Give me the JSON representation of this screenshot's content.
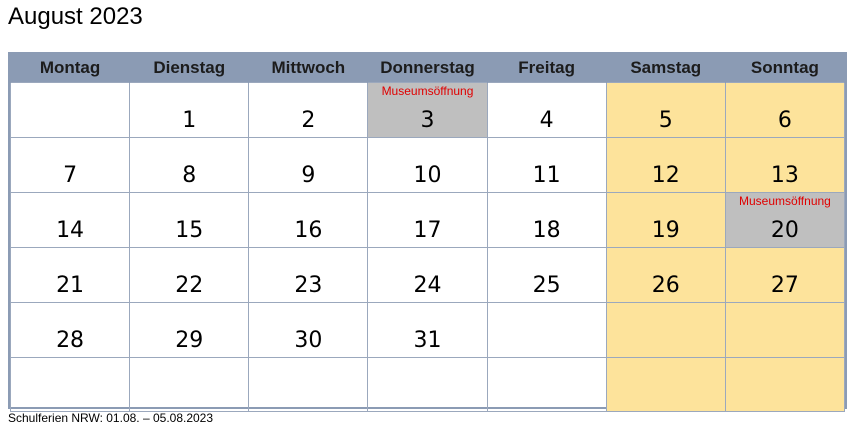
{
  "title": "August 2023",
  "weekdays": [
    "Montag",
    "Dienstag",
    "Mittwoch",
    "Donnerstag",
    "Freitag",
    "Samstag",
    "Sonntag"
  ],
  "weeks": [
    [
      {
        "day": "",
        "type": "normal"
      },
      {
        "day": "1",
        "type": "normal"
      },
      {
        "day": "2",
        "type": "normal"
      },
      {
        "day": "3",
        "type": "event",
        "event": "Museumsöffnung"
      },
      {
        "day": "4",
        "type": "normal"
      },
      {
        "day": "5",
        "type": "weekend"
      },
      {
        "day": "6",
        "type": "weekend"
      }
    ],
    [
      {
        "day": "7",
        "type": "normal"
      },
      {
        "day": "8",
        "type": "normal"
      },
      {
        "day": "9",
        "type": "normal"
      },
      {
        "day": "10",
        "type": "normal"
      },
      {
        "day": "11",
        "type": "normal"
      },
      {
        "day": "12",
        "type": "weekend"
      },
      {
        "day": "13",
        "type": "weekend"
      }
    ],
    [
      {
        "day": "14",
        "type": "normal"
      },
      {
        "day": "15",
        "type": "normal"
      },
      {
        "day": "16",
        "type": "normal"
      },
      {
        "day": "17",
        "type": "normal"
      },
      {
        "day": "18",
        "type": "normal"
      },
      {
        "day": "19",
        "type": "weekend"
      },
      {
        "day": "20",
        "type": "event",
        "event": "Museumsöffnung"
      }
    ],
    [
      {
        "day": "21",
        "type": "normal"
      },
      {
        "day": "22",
        "type": "normal"
      },
      {
        "day": "23",
        "type": "normal"
      },
      {
        "day": "24",
        "type": "normal"
      },
      {
        "day": "25",
        "type": "normal"
      },
      {
        "day": "26",
        "type": "weekend"
      },
      {
        "day": "27",
        "type": "weekend"
      }
    ],
    [
      {
        "day": "28",
        "type": "normal"
      },
      {
        "day": "29",
        "type": "normal"
      },
      {
        "day": "30",
        "type": "normal"
      },
      {
        "day": "31",
        "type": "normal"
      },
      {
        "day": "",
        "type": "normal"
      },
      {
        "day": "",
        "type": "weekend"
      },
      {
        "day": "",
        "type": "weekend"
      }
    ],
    [
      {
        "day": "",
        "type": "normal"
      },
      {
        "day": "",
        "type": "normal"
      },
      {
        "day": "",
        "type": "normal"
      },
      {
        "day": "",
        "type": "normal"
      },
      {
        "day": "",
        "type": "normal"
      },
      {
        "day": "",
        "type": "weekend"
      },
      {
        "day": "",
        "type": "weekend"
      }
    ]
  ],
  "footnote": "Schulferien NRW: 01.08. – 05.08.2023",
  "colors": {
    "header_bg": "#8b9bb4",
    "weekend_bg": "#fde39b",
    "event_bg": "#bfbfbf",
    "event_text": "#e00000"
  }
}
